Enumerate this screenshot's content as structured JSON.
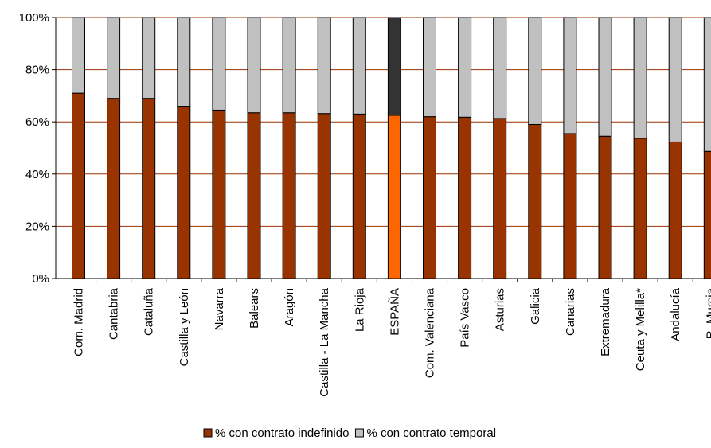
{
  "chart_data": {
    "type": "bar",
    "stacked": true,
    "percent_stacked": true,
    "categories": [
      "Com. Madrid",
      "Cantabria",
      "Cataluña",
      "Castilla y León",
      "Navarra",
      "Balears",
      "Aragón",
      "Castilla - La Mancha",
      "La Rioja",
      "ESPAÑA",
      "Com. Valenciana",
      "País Vasco",
      "Asturias",
      "Galicia",
      "Canarias",
      "Extremadura",
      "Ceuta y Melilla*",
      "Andalucía",
      "R. Murcia"
    ],
    "series": [
      {
        "name": "% con contrato indefinido",
        "color": "#993300",
        "values": [
          71,
          69,
          69,
          66,
          64.5,
          63.5,
          63.5,
          63.2,
          63,
          62.5,
          62,
          61.8,
          61.3,
          59,
          55.5,
          54.5,
          53.7,
          52.3,
          48.7
        ]
      },
      {
        "name": "% con contrato temporal",
        "color": "#c0c0c0",
        "values": [
          29,
          31,
          31,
          34,
          35.5,
          36.5,
          36.5,
          36.8,
          37,
          37.5,
          38,
          38.2,
          38.7,
          41,
          44.5,
          45.5,
          46.3,
          47.7,
          51.3
        ]
      }
    ],
    "highlight": {
      "category": "ESPAÑA",
      "colors": [
        "#ff6600",
        "#333333"
      ]
    },
    "y_ticks": [
      "0%",
      "20%",
      "40%",
      "60%",
      "80%",
      "100%"
    ],
    "ylim": [
      0,
      100
    ],
    "grid": true,
    "legend_position": "bottom",
    "gridline_color": "#993300"
  }
}
